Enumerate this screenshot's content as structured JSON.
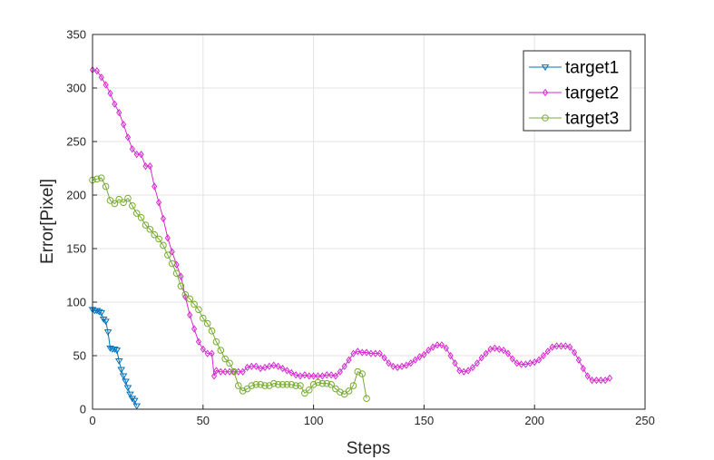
{
  "chart_data": {
    "type": "line",
    "title": "",
    "xlabel": "Steps",
    "ylabel": "Error[Pixel]",
    "xlim": [
      0,
      250
    ],
    "ylim": [
      0,
      350
    ],
    "xticks": [
      0,
      50,
      100,
      150,
      200,
      250
    ],
    "yticks": [
      0,
      50,
      100,
      150,
      200,
      250,
      300,
      350
    ],
    "grid": true,
    "legend_position": "top-right",
    "series": [
      {
        "name": "target1",
        "color": "#0072BD",
        "marker": "triangle-down",
        "x": [
          0,
          1,
          2,
          3,
          4,
          5,
          6,
          7,
          8,
          9,
          10,
          11,
          12,
          13,
          14,
          15,
          16,
          17,
          18,
          19,
          20
        ],
        "y": [
          93,
          92,
          92,
          91,
          90,
          84,
          82,
          72,
          57,
          56,
          56,
          55,
          45,
          37,
          31,
          26,
          20,
          14,
          10,
          8,
          3
        ]
      },
      {
        "name": "target2",
        "color": "#D62AD0",
        "marker": "diamond",
        "x": [
          0,
          2,
          4,
          6,
          8,
          10,
          12,
          14,
          16,
          18,
          20,
          22,
          24,
          26,
          28,
          30,
          32,
          34,
          36,
          38,
          40,
          42,
          44,
          46,
          48,
          50,
          52,
          54,
          55,
          56,
          58,
          60,
          62,
          64,
          66,
          68,
          70,
          72,
          74,
          76,
          78,
          80,
          82,
          84,
          86,
          88,
          90,
          92,
          94,
          96,
          98,
          100,
          102,
          104,
          106,
          108,
          110,
          112,
          114,
          116,
          118,
          120,
          122,
          124,
          126,
          128,
          130,
          132,
          134,
          136,
          138,
          140,
          142,
          144,
          146,
          148,
          150,
          152,
          154,
          156,
          158,
          160,
          162,
          164,
          166,
          168,
          170,
          172,
          174,
          176,
          178,
          180,
          182,
          184,
          186,
          188,
          190,
          192,
          194,
          196,
          198,
          200,
          202,
          204,
          206,
          208,
          210,
          212,
          214,
          216,
          218,
          220,
          222,
          224,
          226,
          228,
          230,
          232,
          234
        ],
        "y": [
          317,
          316,
          310,
          303,
          295,
          285,
          277,
          266,
          254,
          243,
          238,
          238,
          227,
          227,
          208,
          193,
          178,
          160,
          147,
          135,
          124,
          105,
          88,
          75,
          63,
          56,
          52,
          52,
          31,
          36,
          35,
          35,
          35,
          35,
          35,
          35,
          39,
          40,
          40,
          38,
          39,
          40,
          41,
          40,
          38,
          36,
          34,
          32,
          31,
          32,
          31,
          31,
          31,
          31,
          32,
          32,
          31,
          35,
          40,
          46,
          52,
          54,
          53,
          53,
          52,
          52,
          52,
          48,
          43,
          40,
          39,
          40,
          41,
          43,
          46,
          49,
          51,
          55,
          58,
          60,
          60,
          57,
          50,
          43,
          36,
          35,
          36,
          39,
          43,
          48,
          52,
          56,
          57,
          56,
          55,
          52,
          47,
          43,
          42,
          42,
          43,
          44,
          46,
          50,
          54,
          58,
          59,
          59,
          59,
          58,
          53,
          46,
          38,
          31,
          27,
          27,
          27,
          27,
          29
        ]
      },
      {
        "name": "target3",
        "color": "#77AC30",
        "marker": "circle",
        "x": [
          0,
          2,
          4,
          6,
          8,
          10,
          12,
          14,
          16,
          18,
          20,
          22,
          24,
          26,
          28,
          30,
          32,
          34,
          36,
          38,
          40,
          42,
          44,
          46,
          48,
          50,
          52,
          54,
          56,
          58,
          60,
          62,
          64,
          66,
          68,
          70,
          72,
          74,
          76,
          78,
          80,
          82,
          84,
          86,
          88,
          90,
          92,
          94,
          96,
          98,
          100,
          102,
          104,
          106,
          108,
          110,
          112,
          114,
          116,
          118,
          120,
          122,
          124
        ],
        "y": [
          214,
          215,
          216,
          208,
          195,
          192,
          196,
          193,
          197,
          190,
          183,
          179,
          172,
          168,
          163,
          159,
          153,
          144,
          136,
          127,
          115,
          107,
          103,
          98,
          93,
          85,
          80,
          73,
          63,
          55,
          47,
          43,
          35,
          22,
          17,
          19,
          22,
          23,
          23,
          22,
          22,
          24,
          23,
          23,
          23,
          23,
          22,
          22,
          15,
          18,
          23,
          25,
          24,
          24,
          23,
          19,
          16,
          14,
          17,
          22,
          35,
          33,
          10
        ]
      }
    ]
  }
}
